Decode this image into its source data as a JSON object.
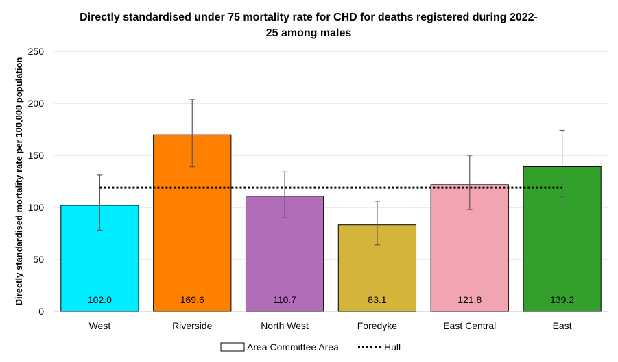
{
  "chart_data": {
    "type": "bar",
    "title_lines": [
      "Directly standardised under 75 mortality rate for CHD for deaths registered during 2022-",
      "25 among males"
    ],
    "xlabel": "",
    "ylabel": "Directly standardised mortality rate per 100,000 population",
    "ylim": [
      0,
      250
    ],
    "yticks": [
      0,
      50,
      100,
      150,
      200,
      250
    ],
    "grid": true,
    "categories": [
      "West",
      "Riverside",
      "North West",
      "Foredyke",
      "East Central",
      "East"
    ],
    "values": [
      102.0,
      169.6,
      110.7,
      83.1,
      121.8,
      139.2
    ],
    "value_labels": [
      "102.0",
      "169.6",
      "110.7",
      "83.1",
      "121.8",
      "139.2"
    ],
    "ci_lower": [
      78,
      139,
      90,
      64,
      98,
      110
    ],
    "ci_upper": [
      131,
      204,
      134,
      106,
      150,
      174
    ],
    "colors": [
      "#00ECFF",
      "#FF8000",
      "#B26DB9",
      "#D4B43A",
      "#F2A4B0",
      "#33A02C"
    ],
    "reference_line": {
      "name": "Hull",
      "value": 119
    },
    "legend": {
      "position": "bottom",
      "bar_entry": "Area Committee Area",
      "line_entry": "Hull"
    }
  }
}
